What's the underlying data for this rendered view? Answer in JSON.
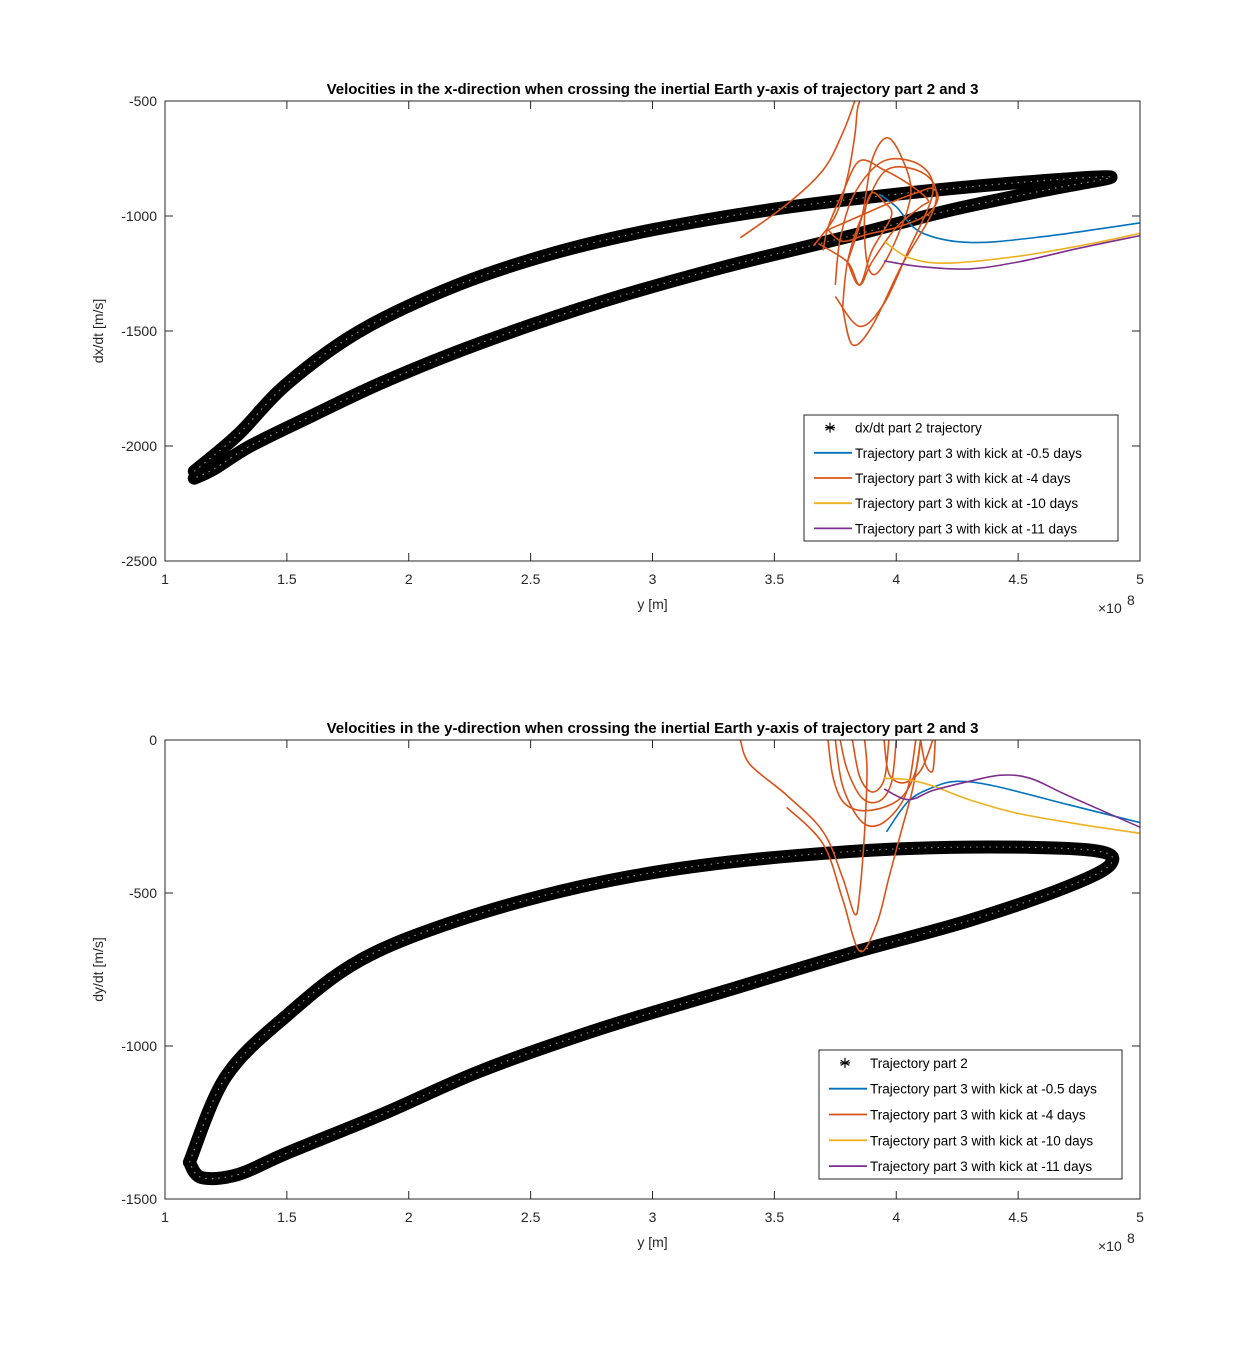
{
  "chart_data": [
    {
      "type": "line",
      "title": "Velocities in the x-direction when crossing the inertial Earth y-axis of trajectory part 2 and 3",
      "xlabel": "y [m]",
      "ylabel": "dx/dt [m/s]",
      "x_multiplier": "×10",
      "x_exponent": "8",
      "xlim": [
        1,
        5
      ],
      "ylim": [
        -2500,
        -500
      ],
      "xticks": [
        "1",
        "1.5",
        "2",
        "2.5",
        "3",
        "3.5",
        "4",
        "4.5",
        "5"
      ],
      "yticks": [
        "-500",
        "-1000",
        "-1500",
        "-2000",
        "-2500"
      ],
      "legend_position": "lower-right",
      "grid": false,
      "series": [
        {
          "name": "dx/dt part 2 trajectory",
          "marker": "asterisk",
          "color": "#000000",
          "loop_upper": [
            [
              1.12,
              -2110
            ],
            [
              1.3,
              -1950
            ],
            [
              1.5,
              -1730
            ],
            [
              1.8,
              -1500
            ],
            [
              2.2,
              -1300
            ],
            [
              2.6,
              -1160
            ],
            [
              3.0,
              -1060
            ],
            [
              3.5,
              -970
            ],
            [
              4.0,
              -905
            ],
            [
              4.5,
              -855
            ],
            [
              4.88,
              -830
            ]
          ],
          "loop_lower": [
            [
              4.88,
              -830
            ],
            [
              4.6,
              -890
            ],
            [
              4.2,
              -980
            ],
            [
              3.8,
              -1090
            ],
            [
              3.3,
              -1220
            ],
            [
              2.8,
              -1370
            ],
            [
              2.3,
              -1550
            ],
            [
              1.9,
              -1720
            ],
            [
              1.6,
              -1870
            ],
            [
              1.35,
              -2000
            ],
            [
              1.2,
              -2100
            ],
            [
              1.12,
              -2140
            ]
          ]
        },
        {
          "name": "Trajectory part 3 with kick at -0.5 days",
          "color": "#0072BD",
          "points": [
            [
              3.93,
              -905
            ],
            [
              4.0,
              -960
            ],
            [
              4.1,
              -1070
            ],
            [
              4.3,
              -1115
            ],
            [
              4.6,
              -1090
            ],
            [
              5.0,
              -1030
            ]
          ]
        },
        {
          "name": "Trajectory part 3 with kick at -4 days",
          "color": "#D95319",
          "bursts": [
            [
              [
                3.36,
                -1095
              ],
              [
                3.55,
                -950
              ],
              [
                3.7,
                -800
              ],
              [
                3.78,
                -640
              ],
              [
                3.83,
                -500
              ]
            ],
            [
              [
                3.66,
                -1130
              ],
              [
                3.75,
                -1000
              ],
              [
                3.8,
                -830
              ],
              [
                3.83,
                -650
              ],
              [
                3.84,
                -540
              ],
              [
                3.85,
                -500
              ]
            ],
            [
              [
                3.68,
                -1120
              ],
              [
                3.8,
                -1200
              ],
              [
                3.85,
                -1300
              ],
              [
                3.9,
                -1200
              ],
              [
                4.0,
                -1050
              ],
              [
                4.1,
                -960
              ],
              [
                4.13,
                -930
              ],
              [
                4.05,
                -860
              ],
              [
                3.95,
                -800
              ],
              [
                3.85,
                -760
              ],
              [
                3.78,
                -900
              ],
              [
                3.72,
                -1050
              ],
              [
                3.7,
                -1150
              ]
            ],
            [
              [
                3.75,
                -1350
              ],
              [
                3.85,
                -1480
              ],
              [
                3.95,
                -1380
              ],
              [
                4.05,
                -1150
              ],
              [
                4.15,
                -900
              ],
              [
                4.1,
                -780
              ],
              [
                3.95,
                -760
              ],
              [
                3.83,
                -900
              ],
              [
                3.77,
                -1100
              ],
              [
                3.75,
                -1300
              ]
            ],
            [
              [
                3.78,
                -1400
              ],
              [
                3.82,
                -1560
              ],
              [
                3.9,
                -1480
              ],
              [
                4.02,
                -1220
              ],
              [
                4.16,
                -950
              ],
              [
                4.12,
                -820
              ],
              [
                3.96,
                -800
              ],
              [
                3.86,
                -1000
              ],
              [
                3.8,
                -1200
              ],
              [
                3.78,
                -1400
              ]
            ],
            [
              [
                3.8,
                -1200
              ],
              [
                3.86,
                -1000
              ],
              [
                3.9,
                -760
              ],
              [
                3.96,
                -660
              ],
              [
                4.02,
                -740
              ],
              [
                4.06,
                -900
              ],
              [
                4.0,
                -1100
              ],
              [
                3.92,
                -1250
              ],
              [
                3.88,
                -1200
              ],
              [
                3.87,
                -1000
              ],
              [
                3.9,
                -900
              ],
              [
                3.95,
                -940
              ],
              [
                3.98,
                -1000
              ],
              [
                3.9,
                -1150
              ],
              [
                3.85,
                -1300
              ],
              [
                3.8,
                -1200
              ]
            ],
            [
              [
                3.72,
                -1060
              ],
              [
                3.85,
                -1000
              ],
              [
                3.98,
                -940
              ],
              [
                4.08,
                -900
              ],
              [
                4.15,
                -880
              ],
              [
                4.17,
                -930
              ],
              [
                4.12,
                -1000
              ],
              [
                4.0,
                -1050
              ],
              [
                3.88,
                -1080
              ],
              [
                3.78,
                -1110
              ],
              [
                3.72,
                -1060
              ]
            ]
          ]
        },
        {
          "name": "Trajectory part 3 with kick at -10 days",
          "color": "#EDB120",
          "points": [
            [
              3.95,
              -1110
            ],
            [
              4.05,
              -1180
            ],
            [
              4.2,
              -1205
            ],
            [
              4.5,
              -1175
            ],
            [
              4.8,
              -1120
            ],
            [
              5.0,
              -1075
            ]
          ]
        },
        {
          "name": "Trajectory part 3 with kick at -11 days",
          "color": "#7E2F8E",
          "points": [
            [
              3.95,
              -1195
            ],
            [
              4.1,
              -1220
            ],
            [
              4.3,
              -1230
            ],
            [
              4.5,
              -1200
            ],
            [
              4.75,
              -1140
            ],
            [
              5.0,
              -1085
            ]
          ]
        }
      ]
    },
    {
      "type": "line",
      "title": "Velocities in the y-direction when crossing the inertial Earth y-axis of trajectory part 2 and 3",
      "xlabel": "y [m]",
      "ylabel": "dy/dt [m/s]",
      "x_multiplier": "×10",
      "x_exponent": "8",
      "xlim": [
        1,
        5
      ],
      "ylim": [
        -1500,
        0
      ],
      "xticks": [
        "1",
        "1.5",
        "2",
        "2.5",
        "3",
        "3.5",
        "4",
        "4.5",
        "5"
      ],
      "yticks": [
        "0",
        "-500",
        "-1000",
        "-1500"
      ],
      "legend_position": "lower-right",
      "grid": false,
      "series": [
        {
          "name": "Trajectory part 2",
          "marker": "asterisk",
          "color": "#000000",
          "loop_upper": [
            [
              1.1,
              -1380
            ],
            [
              1.25,
              -1100
            ],
            [
              1.5,
              -900
            ],
            [
              1.8,
              -720
            ],
            [
              2.2,
              -590
            ],
            [
              2.7,
              -480
            ],
            [
              3.2,
              -410
            ],
            [
              3.8,
              -365
            ],
            [
              4.3,
              -350
            ],
            [
              4.8,
              -360
            ],
            [
              4.88,
              -405
            ]
          ],
          "loop_lower": [
            [
              4.88,
              -405
            ],
            [
              4.7,
              -480
            ],
            [
              4.3,
              -590
            ],
            [
              3.8,
              -700
            ],
            [
              3.3,
              -820
            ],
            [
              2.8,
              -940
            ],
            [
              2.3,
              -1080
            ],
            [
              1.9,
              -1220
            ],
            [
              1.5,
              -1350
            ],
            [
              1.3,
              -1420
            ],
            [
              1.15,
              -1430
            ],
            [
              1.1,
              -1380
            ]
          ]
        },
        {
          "name": "Trajectory part 3 with kick at -0.5 days",
          "color": "#0072BD",
          "points": [
            [
              3.96,
              -300
            ],
            [
              4.05,
              -200
            ],
            [
              4.15,
              -155
            ],
            [
              4.25,
              -135
            ],
            [
              4.4,
              -150
            ],
            [
              4.7,
              -210
            ],
            [
              5.0,
              -270
            ]
          ]
        },
        {
          "name": "Trajectory part 3 with kick at -4 days",
          "color": "#D95319",
          "bursts": [
            [
              [
                3.36,
                0
              ],
              [
                3.4,
                -80
              ],
              [
                3.55,
                -180
              ],
              [
                3.7,
                -300
              ],
              [
                3.78,
                -450
              ],
              [
                3.83,
                -570
              ],
              [
                3.85,
                -500
              ],
              [
                3.87,
                -300
              ],
              [
                3.88,
                -100
              ],
              [
                3.87,
                0
              ]
            ],
            [
              [
                3.55,
                -220
              ],
              [
                3.7,
                -340
              ],
              [
                3.78,
                -520
              ],
              [
                3.85,
                -690
              ],
              [
                3.92,
                -600
              ],
              [
                3.97,
                -450
              ],
              [
                4.02,
                -300
              ],
              [
                4.07,
                -150
              ],
              [
                4.1,
                0
              ]
            ],
            [
              [
                3.72,
                0
              ],
              [
                3.74,
                -120
              ],
              [
                3.78,
                -200
              ],
              [
                3.85,
                -230
              ],
              [
                3.95,
                -220
              ],
              [
                4.03,
                -180
              ],
              [
                4.08,
                -100
              ],
              [
                4.1,
                0
              ]
            ],
            [
              [
                3.75,
                0
              ],
              [
                3.78,
                -150
              ],
              [
                3.85,
                -260
              ],
              [
                3.92,
                -280
              ],
              [
                4.0,
                -230
              ],
              [
                4.05,
                -150
              ],
              [
                4.08,
                0
              ]
            ],
            [
              [
                3.77,
                0
              ],
              [
                3.8,
                -100
              ],
              [
                3.86,
                -190
              ],
              [
                3.93,
                -200
              ],
              [
                3.98,
                -140
              ],
              [
                4.0,
                0
              ]
            ],
            [
              [
                3.82,
                0
              ],
              [
                3.85,
                -120
              ],
              [
                3.9,
                -170
              ],
              [
                3.95,
                -130
              ],
              [
                3.97,
                0
              ]
            ],
            [
              [
                3.95,
                0
              ],
              [
                3.97,
                -110
              ],
              [
                4.03,
                -140
              ],
              [
                4.1,
                -100
              ],
              [
                4.15,
                0
              ]
            ],
            [
              [
                4.1,
                0
              ],
              [
                4.12,
                -80
              ],
              [
                4.15,
                -100
              ],
              [
                4.16,
                0
              ]
            ]
          ]
        },
        {
          "name": "Trajectory part 3 with kick at -10 days",
          "color": "#EDB120",
          "points": [
            [
              3.95,
              -125
            ],
            [
              4.05,
              -130
            ],
            [
              4.15,
              -150
            ],
            [
              4.3,
              -195
            ],
            [
              4.5,
              -240
            ],
            [
              4.75,
              -275
            ],
            [
              5.0,
              -305
            ]
          ]
        },
        {
          "name": "Trajectory part 3 with kick at -11 days",
          "color": "#7E2F8E",
          "points": [
            [
              3.95,
              -160
            ],
            [
              4.05,
              -195
            ],
            [
              4.15,
              -165
            ],
            [
              4.3,
              -135
            ],
            [
              4.43,
              -115
            ],
            [
              4.55,
              -125
            ],
            [
              4.7,
              -180
            ],
            [
              5.0,
              -285
            ]
          ]
        }
      ]
    }
  ]
}
